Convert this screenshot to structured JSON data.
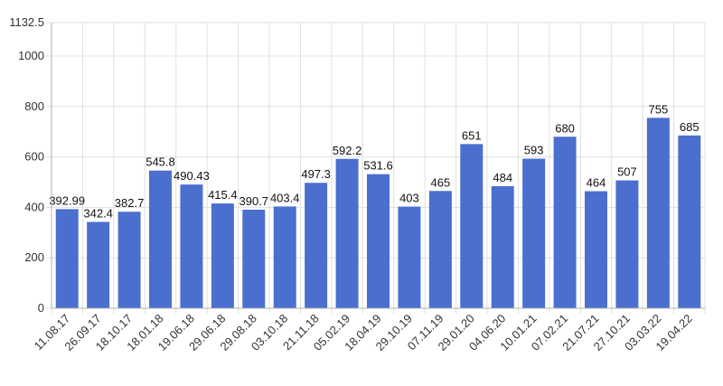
{
  "chart_data": {
    "type": "bar",
    "categories": [
      "11.08.17",
      "26.09.17",
      "18.10.17",
      "18.01.18",
      "19.06.18",
      "29.06.18",
      "29.08.18",
      "03.10.18",
      "21.11.18",
      "05.02.19",
      "18.04.19",
      "29.10.19",
      "07.11.19",
      "29.01.20",
      "04.06.20",
      "10.01.21",
      "07.02.21",
      "21.07.21",
      "27.10.21",
      "03.03.22",
      "19.04.22"
    ],
    "values": [
      392.99,
      342.4,
      382.7,
      545.8,
      490.43,
      415.4,
      390.7,
      403.4,
      497.3,
      592.2,
      531.6,
      403,
      465,
      651,
      484,
      593,
      680,
      464,
      507,
      755,
      685
    ],
    "value_labels": [
      "392.99",
      "342.4",
      "382.7",
      "545.8",
      "490.43",
      "415.4",
      "390.7",
      "403.4",
      "497.3",
      "592.2",
      "531.6",
      "403",
      "465",
      "651",
      "484",
      "593",
      "680",
      "464",
      "507",
      "755",
      "685"
    ],
    "title": "",
    "xlabel": "",
    "ylabel": "",
    "ylim": [
      0,
      1132.5
    ],
    "yticks": [
      "0",
      "200",
      "400",
      "600",
      "800",
      "1000",
      "1132.5"
    ],
    "ytick_values": [
      0,
      200,
      400,
      600,
      800,
      1000,
      1132.5
    ],
    "grid": true,
    "legend": "none",
    "bar_color": "#4a6fcf"
  }
}
